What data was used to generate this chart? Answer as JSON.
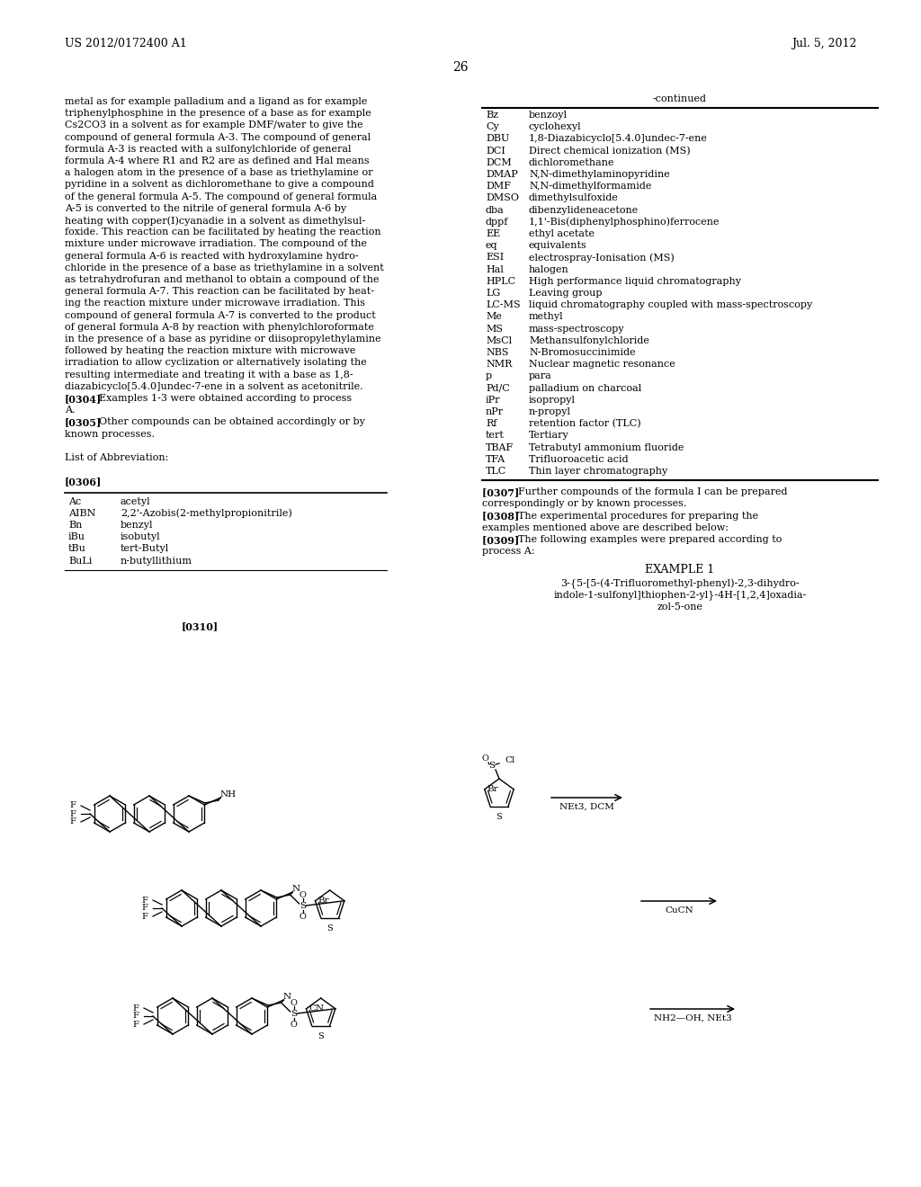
{
  "background_color": "#ffffff",
  "header_left": "US 2012/0172400 A1",
  "header_right": "Jul. 5, 2012",
  "page_number": "26",
  "left_text_lines": [
    "metal as for example palladium and a ligand as for example",
    "triphenylphosphine in the presence of a base as for example",
    "Cs2CO3 in a solvent as for example DMF/water to give the",
    "compound of general formula A-3. The compound of general",
    "formula A-3 is reacted with a sulfonylchloride of general",
    "formula A-4 where R1 and R2 are as defined and Hal means",
    "a halogen atom in the presence of a base as triethylamine or",
    "pyridine in a solvent as dichloromethane to give a compound",
    "of the general formula A-5. The compound of general formula",
    "A-5 is converted to the nitrile of general formula A-6 by",
    "heating with copper(I)cyanadie in a solvent as dimethylsul-",
    "foxide. This reaction can be facilitated by heating the reaction",
    "mixture under microwave irradiation. The compound of the",
    "general formula A-6 is reacted with hydroxylamine hydro-",
    "chloride in the presence of a base as triethylamine in a solvent",
    "as tetrahydrofuran and methanol to obtain a compound of the",
    "general formula A-7. This reaction can be facilitated by heat-",
    "ing the reaction mixture under microwave irradiation. This",
    "compound of general formula A-7 is converted to the product",
    "of general formula A-8 by reaction with phenylchloroformate",
    "in the presence of a base as pyridine or diisopropylethylamine",
    "followed by heating the reaction mixture with microwave",
    "irradiation to allow cyclization or alternatively isolating the",
    "resulting intermediate and treating it with a base as 1,8-",
    "diazabicyclo[5.4.0]undec-7-ene in a solvent as acetonitrile.",
    "[0304]   Examples 1-3 were obtained according to process",
    "A.",
    "[0305]   Other compounds can be obtained accordingly or by",
    "known processes.",
    "",
    "List of Abbreviation:",
    "",
    "[0306]"
  ],
  "abbrev_left_table": [
    [
      "Ac",
      "acetyl"
    ],
    [
      "AIBN",
      "2,2'-Azobis(2-methylpropionitrile)"
    ],
    [
      "Bn",
      "benzyl"
    ],
    [
      "iBu",
      "isobutyl"
    ],
    [
      "tBu",
      "tert-Butyl"
    ],
    [
      "BuLi",
      "n-butyllithium"
    ]
  ],
  "right_continued_label": "-continued",
  "abbrev_right_table": [
    [
      "Bz",
      "benzoyl"
    ],
    [
      "Cy",
      "cyclohexyl"
    ],
    [
      "DBU",
      "1,8-Diazabicyclo[5.4.0]undec-7-ene"
    ],
    [
      "DCI",
      "Direct chemical ionization (MS)"
    ],
    [
      "DCM",
      "dichloromethane"
    ],
    [
      "DMAP",
      "N,N-dimethylaminopyridine"
    ],
    [
      "DMF",
      "N,N-dimethylformamide"
    ],
    [
      "DMSO",
      "dimethylsulfoxide"
    ],
    [
      "dba",
      "dibenzylideneacetone"
    ],
    [
      "dppf",
      "1,1'-Bis(diphenylphosphino)ferrocene"
    ],
    [
      "EE",
      "ethyl acetate"
    ],
    [
      "eq",
      "equivalents"
    ],
    [
      "ESI",
      "electrospray-Ionisation (MS)"
    ],
    [
      "Hal",
      "halogen"
    ],
    [
      "HPLC",
      "High performance liquid chromatography"
    ],
    [
      "LG",
      "Leaving group"
    ],
    [
      "LC-MS",
      "liquid chromatography coupled with mass-spectroscopy"
    ],
    [
      "Me",
      "methyl"
    ],
    [
      "MS",
      "mass-spectroscopy"
    ],
    [
      "MsCl",
      "Methansulfonylchloride"
    ],
    [
      "NBS",
      "N-Bromosuccinimide"
    ],
    [
      "NMR",
      "Nuclear magnetic resonance"
    ],
    [
      "p",
      "para"
    ],
    [
      "Pd/C",
      "palladium on charcoal"
    ],
    [
      "iPr",
      "isopropyl"
    ],
    [
      "nPr",
      "n-propyl"
    ],
    [
      "Rf",
      "retention factor (TLC)"
    ],
    [
      "tert",
      "Tertiary"
    ],
    [
      "TBAF",
      "Tetrabutyl ammonium fluoride"
    ],
    [
      "TFA",
      "Trifluoroacetic acid"
    ],
    [
      "TLC",
      "Thin layer chromatography"
    ]
  ],
  "right_text_lines": [
    "[0307]   Further compounds of the formula I can be prepared",
    "correspondingly or by known processes.",
    "[0308]   The experimental procedures for preparing the",
    "examples mentioned above are described below:",
    "[0309]   The following examples were prepared according to",
    "process A:"
  ],
  "example1_title": "EXAMPLE 1",
  "example1_compound_lines": [
    "3-{5-[5-(4-Trifluoromethyl-phenyl)-2,3-dihydro-",
    "indole-1-sulfonyl]thiophen-2-yl}-4H-[1,2,4]oxadia-",
    "zol-5-one"
  ],
  "para_label": "[0310]",
  "reaction_arrow1_label": "NEt3, DCM",
  "reaction_arrow2_label": "CuCN",
  "reaction_arrow3_label": "NH2—OH, NEt3"
}
